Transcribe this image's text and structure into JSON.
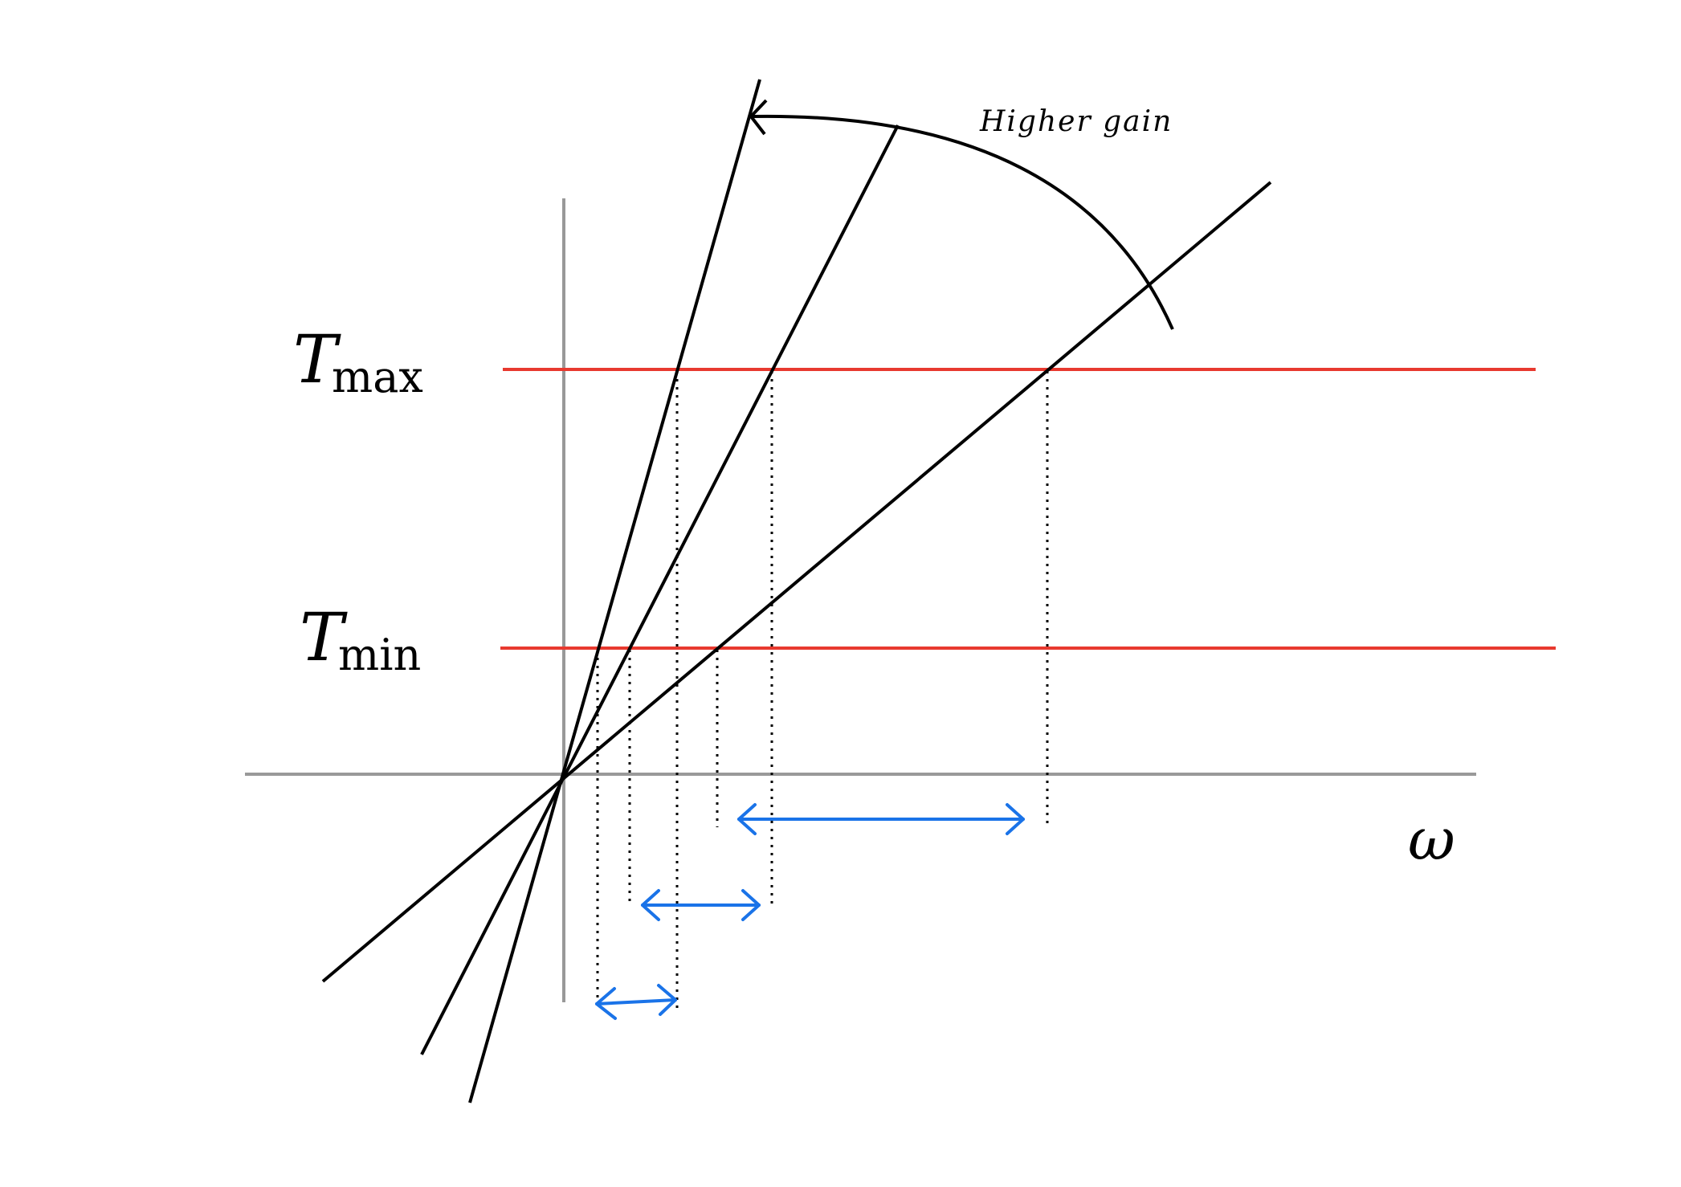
{
  "diagram": {
    "labels": {
      "tmax_symbol": "T",
      "tmax_subscript": "max",
      "tmin_symbol": "T",
      "tmin_subscript": "min",
      "omega": "ω",
      "higher_gain": "Higher gain"
    },
    "colors": {
      "axis": "#999999",
      "gain_line": "#000000",
      "threshold_line": "#e8392f",
      "range_arrow": "#1a73e8",
      "guide": "#000000",
      "background": "#ffffff"
    },
    "gain_lines": [
      "low-gain-line",
      "mid-gain-line",
      "high-gain-line"
    ],
    "thresholds": [
      "T_max",
      "T_min"
    ],
    "ranges": [
      "low-gain-range",
      "mid-gain-range",
      "high-gain-range"
    ]
  }
}
